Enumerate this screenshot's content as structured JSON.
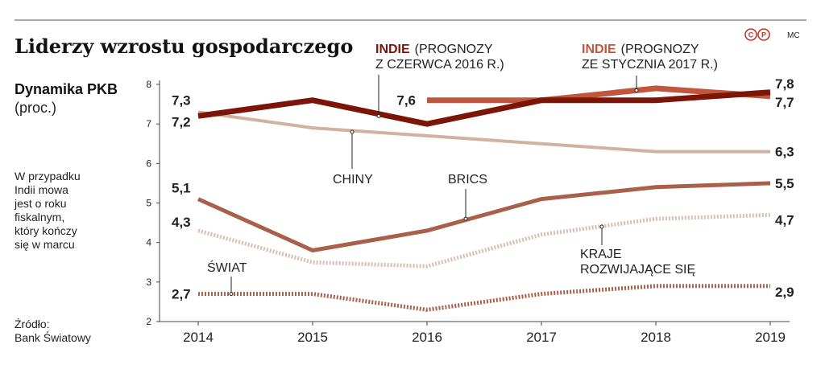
{
  "header": {
    "title": "Liderzy wzrostu gospodarczego",
    "subtitle_bold": "Dynamika PKB",
    "subtitle": "(proc.)",
    "note_lines": [
      "W przypadku",
      "Indii mowa",
      "jest o roku",
      "fiskalnym,",
      "który kończy",
      "się w marcu"
    ],
    "source_lines": [
      "Źródło:",
      "Bank Światowy"
    ],
    "logo_letters": [
      "C",
      "P"
    ],
    "credit": "MC"
  },
  "labels": {
    "indie_2016_bold": "INDIE",
    "indie_2016_rest1": "(PROGNOZY",
    "indie_2016_rest2": "Z CZERWCA 2016 R.)",
    "indie_2017_bold": "INDIE",
    "indie_2017_rest1": "(PROGNOZY",
    "indie_2017_rest2": "ZE STYCZNIA 2017 R.)",
    "chiny": "CHINY",
    "brics": "BRICS",
    "kraje1": "KRAJE",
    "kraje2": "ROZWIJAJĄCE SIĘ",
    "swiat": "ŚWIAT"
  },
  "colors": {
    "indie_2016": "#7a1508",
    "indie_2017": "#c1563c",
    "chiny": "#d3b1a0",
    "brics": "#a8604a",
    "kraje": "#d7bfb2",
    "swiat": "#a8604a",
    "accent_red": "#c0392b"
  },
  "chart_data": {
    "type": "line",
    "x": [
      "2014",
      "2015",
      "2016",
      "2017",
      "2018",
      "2019"
    ],
    "ylim": [
      2,
      8
    ],
    "yticks": [
      "2",
      "3",
      "4",
      "5",
      "6",
      "7",
      "8"
    ],
    "grid": false,
    "series": [
      {
        "name": "INDIE (PROGNOZY Z CZERWCA 2016 R.)",
        "values": [
          7.2,
          7.6,
          7.0,
          7.6,
          7.6,
          7.8
        ],
        "start_label": "7,2",
        "end_label": "7,8"
      },
      {
        "name": "INDIE (PROGNOZY ZE STYCZNIA 2017 R.)",
        "values": [
          null,
          null,
          7.6,
          7.6,
          7.9,
          7.7
        ],
        "start_label": "7,6",
        "end_label": "7,7"
      },
      {
        "name": "CHINY",
        "values": [
          7.3,
          6.9,
          6.7,
          6.5,
          6.3,
          6.3
        ],
        "start_label": "7,3",
        "end_label": "6,3"
      },
      {
        "name": "BRICS",
        "values": [
          5.1,
          3.8,
          4.3,
          5.1,
          5.4,
          5.5
        ],
        "start_label": "5,1",
        "end_label": "5,5"
      },
      {
        "name": "KRAJE ROZWIJAJĄCE SIĘ",
        "values": [
          4.3,
          3.5,
          3.4,
          4.2,
          4.6,
          4.7
        ],
        "start_label": "4,3",
        "end_label": "4,7"
      },
      {
        "name": "ŚWIAT",
        "values": [
          2.7,
          2.7,
          2.3,
          2.7,
          2.9,
          2.9
        ],
        "start_label": "2,7",
        "end_label": "2,9"
      }
    ]
  }
}
